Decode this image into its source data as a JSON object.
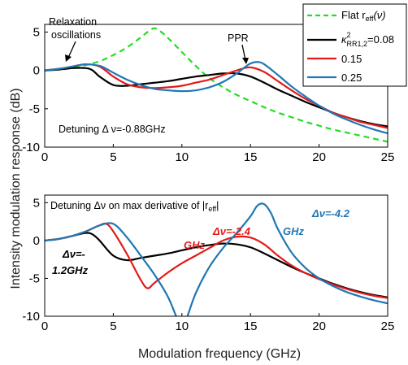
{
  "chart_data": [
    {
      "type": "line",
      "panel": "top",
      "xlim": [
        0,
        25
      ],
      "ylim": [
        -10,
        6
      ],
      "xticks": [
        "0",
        "5",
        "10",
        "15",
        "20",
        "25"
      ],
      "yticks": [
        "5",
        "0",
        "-5",
        "-10"
      ],
      "ytick_values": [
        5,
        0,
        -5,
        -10
      ],
      "xtick_values": [
        0,
        5,
        10,
        15,
        20,
        25
      ],
      "grid": false,
      "legend": {
        "placement": "top-right",
        "entries": [
          {
            "label_main": "Flat r",
            "label_sub": "eff",
            "label_tail": "(ν)",
            "color": "#22dd22",
            "dash": true
          },
          {
            "label": "0.08",
            "kappa_main": "κ",
            "kappa_sup": "2",
            "kappa_sub": "RR1,2",
            "kappa_eq": "=0.08",
            "color": "#000000"
          },
          {
            "label": "0.15",
            "color": "#e41a1a"
          },
          {
            "label": "0.25",
            "color": "#1f77b4"
          }
        ]
      },
      "annotations": {
        "relaxation_line1": "Relaxation",
        "relaxation_line2": "oscillations",
        "ppr": "PPR",
        "detuning": "Detuning Δ ν=-0.88GHz"
      },
      "series": [
        {
          "name": "Flat r_eff(ν)",
          "color": "#22dd22",
          "dash": true,
          "x": [
            0,
            1,
            2,
            3,
            4,
            5,
            6,
            7,
            7.5,
            8,
            8.5,
            9,
            10,
            11,
            12,
            13,
            14,
            15,
            16,
            17,
            18,
            19,
            20,
            21,
            22,
            23,
            24,
            25
          ],
          "y": [
            0,
            0.1,
            0.3,
            0.7,
            1.2,
            2.0,
            3.0,
            4.3,
            5.0,
            5.5,
            5.0,
            4.2,
            2.4,
            0.6,
            -1.0,
            -2.2,
            -3.2,
            -4.0,
            -4.8,
            -5.5,
            -6.1,
            -6.7,
            -7.2,
            -7.7,
            -8.1,
            -8.5,
            -8.9,
            -9.3
          ]
        },
        {
          "name": "0.08",
          "color": "#000000",
          "x": [
            0,
            1,
            2,
            3,
            3.5,
            4,
            5,
            6,
            7,
            8,
            9,
            10,
            11,
            12,
            13,
            14,
            15,
            16,
            17,
            18,
            19,
            20,
            21,
            22,
            23,
            24,
            25
          ],
          "y": [
            0,
            0.1,
            0.3,
            0.3,
            0,
            -0.8,
            -1.9,
            -2.0,
            -1.8,
            -1.6,
            -1.4,
            -1.1,
            -0.8,
            -0.6,
            -0.4,
            -0.4,
            -0.8,
            -1.6,
            -2.5,
            -3.3,
            -4.1,
            -4.8,
            -5.5,
            -6.1,
            -6.6,
            -7.0,
            -7.3
          ]
        },
        {
          "name": "0.15",
          "color": "#e41a1a",
          "x": [
            0,
            1,
            2,
            3,
            4,
            5,
            6,
            7,
            8,
            9,
            10,
            11,
            12,
            13,
            14,
            15,
            16,
            17,
            18,
            19,
            20,
            21,
            22,
            23,
            24,
            25
          ],
          "y": [
            0,
            0.2,
            0.5,
            0.8,
            0.5,
            -0.8,
            -1.8,
            -2.2,
            -2.3,
            -2.2,
            -2.0,
            -1.6,
            -1.2,
            -0.6,
            0,
            0.4,
            -0.2,
            -1.4,
            -2.6,
            -3.7,
            -4.6,
            -5.5,
            -6.1,
            -6.7,
            -7.1,
            -7.5
          ]
        },
        {
          "name": "0.25",
          "color": "#1f77b4",
          "x": [
            0,
            1,
            2,
            3,
            4,
            4.5,
            5,
            6,
            7,
            8,
            9,
            10,
            11,
            12,
            13,
            14,
            14.5,
            15,
            15.5,
            16,
            17,
            18,
            19,
            20,
            21,
            22,
            23,
            24,
            25
          ],
          "y": [
            0,
            0.2,
            0.5,
            0.8,
            0.6,
            0.2,
            -0.3,
            -1.2,
            -1.9,
            -2.4,
            -2.6,
            -2.7,
            -2.6,
            -2.2,
            -1.5,
            -0.4,
            0.3,
            0.9,
            1.1,
            0.8,
            -0.6,
            -2.1,
            -3.4,
            -4.6,
            -5.6,
            -6.4,
            -7.1,
            -7.7,
            -8.2
          ]
        }
      ]
    },
    {
      "type": "line",
      "panel": "bottom",
      "xlim": [
        0,
        25
      ],
      "ylim": [
        -10,
        6
      ],
      "xticks": [
        "0",
        "5",
        "10",
        "15",
        "20",
        "25"
      ],
      "yticks": [
        "5",
        "0",
        "-5",
        "-10"
      ],
      "ytick_values": [
        5,
        0,
        -5,
        -10
      ],
      "xtick_values": [
        0,
        5,
        10,
        15,
        20,
        25
      ],
      "grid": false,
      "annotations": {
        "detuning_main": "Detuning Δν on max derivative of |r",
        "detuning_sub": "eff",
        "detuning_tail": "|",
        "dv_black_1": "Δν=-",
        "dv_black_2": "1.2GHz",
        "dv_red_1": "Δν=-2.4",
        "dv_red_2": "GHz",
        "dv_blue_1": "Δν=-4.2",
        "dv_blue_2": "GHz"
      },
      "series": [
        {
          "name": "Δν=-1.2GHz",
          "color": "#000000",
          "x": [
            0,
            1,
            2,
            3,
            3.5,
            4,
            5,
            6,
            7,
            8,
            9,
            10,
            11,
            12,
            13,
            14,
            15,
            16,
            17,
            18,
            19,
            20,
            21,
            22,
            23,
            24,
            25
          ],
          "y": [
            0,
            0.2,
            0.6,
            1.0,
            0.8,
            0,
            -2.0,
            -2.6,
            -2.3,
            -2.0,
            -1.7,
            -1.3,
            -0.9,
            -0.6,
            -0.4,
            -0.5,
            -0.9,
            -1.7,
            -2.6,
            -3.5,
            -4.3,
            -5.0,
            -5.7,
            -6.3,
            -6.8,
            -7.2,
            -7.5
          ]
        },
        {
          "name": "Δν=-2.4GHz",
          "color": "#e41a1a",
          "x": [
            0,
            1,
            2,
            3,
            4,
            4.5,
            5,
            6,
            7,
            7.5,
            8,
            9,
            10,
            11,
            12,
            13,
            14,
            15,
            16,
            17,
            18,
            19,
            20,
            21,
            22,
            23,
            24,
            25
          ],
          "y": [
            0,
            0.2,
            0.6,
            1.2,
            2.0,
            2.2,
            1.2,
            -1.8,
            -5.2,
            -6.3,
            -5.6,
            -4.2,
            -3.0,
            -2.0,
            -1.0,
            0,
            0.5,
            0.4,
            -0.5,
            -2.0,
            -3.3,
            -4.3,
            -5.1,
            -5.8,
            -6.4,
            -6.9,
            -7.3,
            -7.6
          ]
        },
        {
          "name": "Δν=-4.2GHz",
          "color": "#1f77b4",
          "x": [
            0,
            1,
            2,
            3,
            4,
            5,
            6,
            7,
            8,
            9,
            9.7,
            10,
            10.3,
            11,
            12,
            13,
            14,
            15,
            15.5,
            16,
            16.5,
            17,
            18,
            19,
            20,
            21,
            22,
            23,
            24,
            25
          ],
          "y": [
            0,
            0.2,
            0.6,
            1.2,
            2.0,
            2.2,
            0.4,
            -2.0,
            -4.5,
            -7.5,
            -10.5,
            -11,
            -10.5,
            -7.0,
            -3.5,
            -1.0,
            1.0,
            3.2,
            4.6,
            4.8,
            3.6,
            1.5,
            -1.6,
            -3.6,
            -5.0,
            -6.0,
            -6.8,
            -7.4,
            -7.9,
            -8.3
          ]
        }
      ]
    }
  ],
  "figure": {
    "ylabel": "Intensity modulation response (dB)",
    "xlabel": "Modulation frequency (GHz)"
  }
}
